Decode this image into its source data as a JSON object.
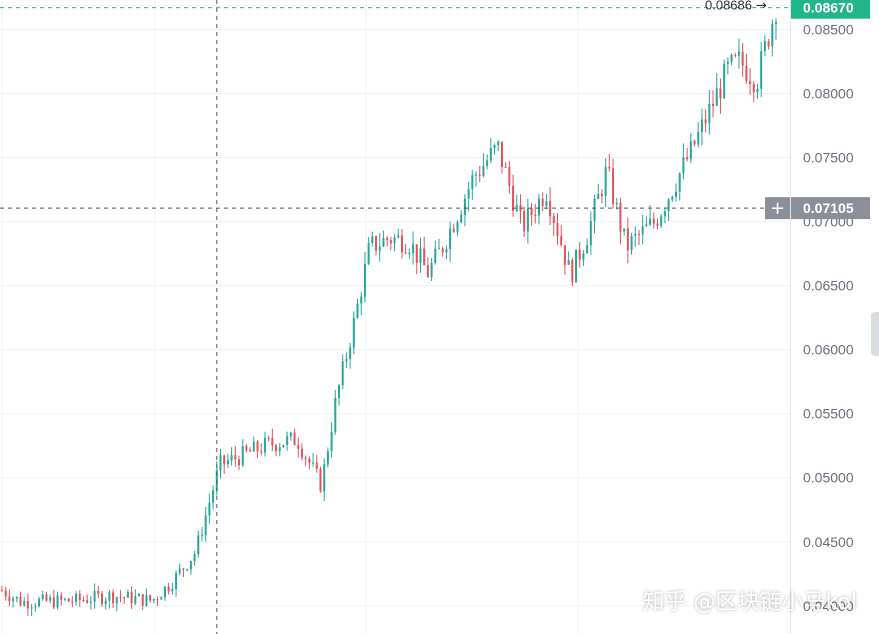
{
  "chart_data": {
    "type": "candlestick",
    "ylim": [
      0.0378,
      0.0873
    ],
    "y_ticks": [
      "0.04000",
      "0.04500",
      "0.05000",
      "0.05500",
      "0.06000",
      "0.06500",
      "0.07000",
      "0.07500",
      "0.08000",
      "0.08500"
    ],
    "y_tick_values": [
      0.04,
      0.045,
      0.05,
      0.055,
      0.06,
      0.065,
      0.07,
      0.075,
      0.08,
      0.085
    ],
    "grid": true,
    "colors": {
      "up": "#26a69a",
      "down": "#e0525a"
    },
    "current_price": {
      "label": "0.08670",
      "value": 0.0867,
      "color": "#22b58a"
    },
    "crosshair": {
      "price_label": "0.07105",
      "value": 0.07105,
      "plus_label": "+",
      "label_color": "#8b8f98",
      "candle_index": 58
    },
    "high_marker": {
      "label": "0.08686",
      "arrow": "→",
      "value": 0.08686
    },
    "candles_count": 210,
    "anchors": [
      [
        0,
        0.0412
      ],
      [
        8,
        0.0403
      ],
      [
        30,
        0.0404
      ],
      [
        45,
        0.0408
      ],
      [
        62,
        0.0404
      ],
      [
        70,
        0.0418
      ],
      [
        80,
        0.0442
      ],
      [
        90,
        0.051
      ],
      [
        100,
        0.0518
      ],
      [
        110,
        0.0526
      ],
      [
        122,
        0.053
      ],
      [
        132,
        0.0494
      ],
      [
        138,
        0.056
      ],
      [
        146,
        0.0625
      ],
      [
        152,
        0.068
      ],
      [
        160,
        0.0687
      ],
      [
        168,
        0.0685
      ],
      [
        176,
        0.066
      ],
      [
        182,
        0.068
      ],
      [
        195,
        0.0735
      ],
      [
        205,
        0.0758
      ],
      [
        215,
        0.0695
      ],
      [
        225,
        0.0725
      ],
      [
        235,
        0.0658
      ],
      [
        242,
        0.069
      ],
      [
        250,
        0.074
      ],
      [
        258,
        0.068
      ],
      [
        270,
        0.07
      ],
      [
        285,
        0.0755
      ],
      [
        300,
        0.0818
      ],
      [
        305,
        0.0825
      ],
      [
        312,
        0.081
      ],
      [
        320,
        0.0868
      ]
    ]
  },
  "watermark": "知乎 @区块链小马kol"
}
